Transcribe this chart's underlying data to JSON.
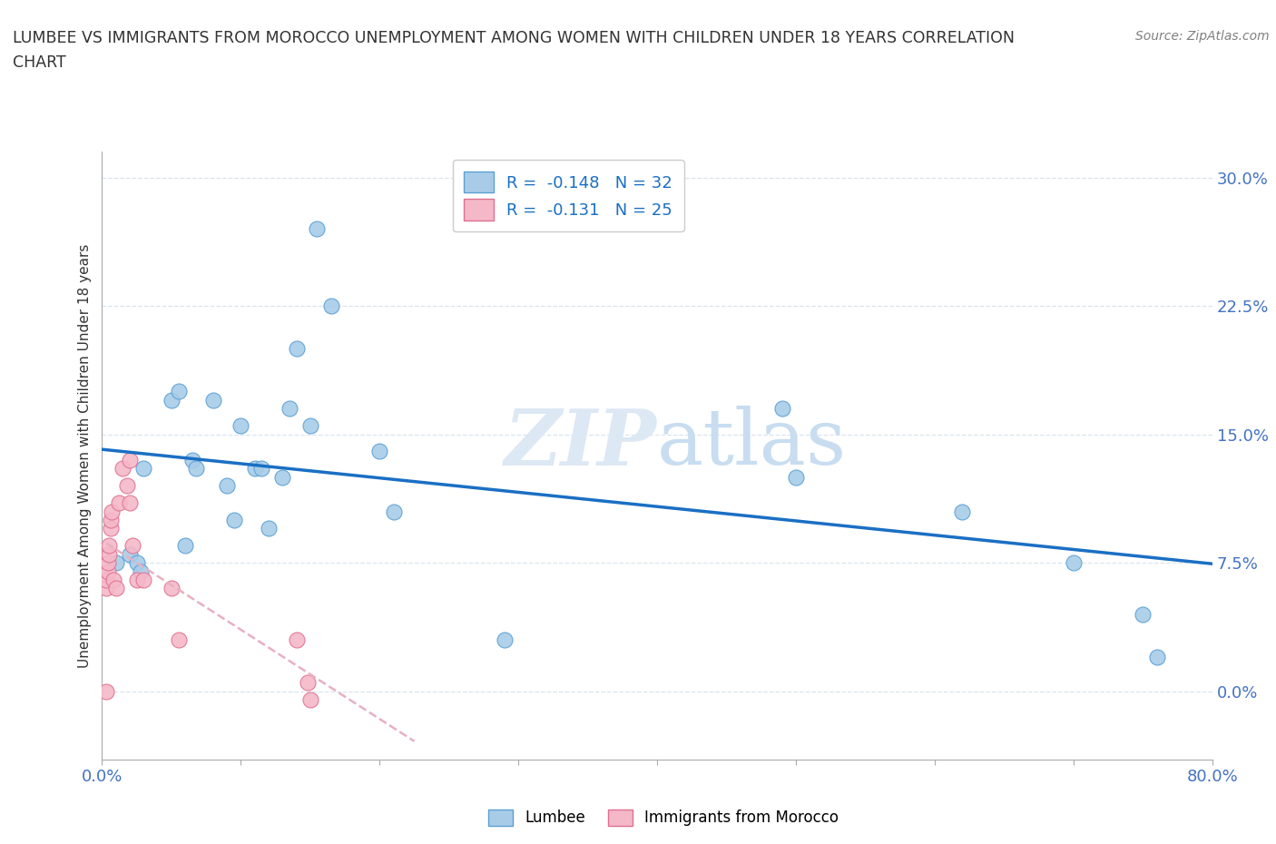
{
  "title_line1": "LUMBEE VS IMMIGRANTS FROM MOROCCO UNEMPLOYMENT AMONG WOMEN WITH CHILDREN UNDER 18 YEARS CORRELATION",
  "title_line2": "CHART",
  "source": "Source: ZipAtlas.com",
  "ylabel": "Unemployment Among Women with Children Under 18 years",
  "xlim": [
    0.0,
    0.8
  ],
  "ylim": [
    -0.04,
    0.315
  ],
  "yticks": [
    0.0,
    0.075,
    0.15,
    0.225,
    0.3
  ],
  "ytick_labels": [
    "0.0%",
    "7.5%",
    "15.0%",
    "22.5%",
    "30.0%"
  ],
  "xticks": [
    0.0,
    0.1,
    0.2,
    0.3,
    0.4,
    0.5,
    0.6,
    0.7,
    0.8
  ],
  "xtick_labels": [
    "0.0%",
    "",
    "",
    "",
    "",
    "",
    "",
    "",
    "80.0%"
  ],
  "lumbee_x": [
    0.01,
    0.02,
    0.025,
    0.028,
    0.03,
    0.05,
    0.055,
    0.06,
    0.065,
    0.068,
    0.08,
    0.09,
    0.095,
    0.1,
    0.11,
    0.115,
    0.12,
    0.13,
    0.135,
    0.14,
    0.15,
    0.155,
    0.165,
    0.2,
    0.21,
    0.29,
    0.49,
    0.5,
    0.62,
    0.7,
    0.75,
    0.76
  ],
  "lumbee_y": [
    0.075,
    0.08,
    0.075,
    0.07,
    0.13,
    0.17,
    0.175,
    0.085,
    0.135,
    0.13,
    0.17,
    0.12,
    0.1,
    0.155,
    0.13,
    0.13,
    0.095,
    0.125,
    0.165,
    0.2,
    0.155,
    0.27,
    0.225,
    0.14,
    0.105,
    0.03,
    0.165,
    0.125,
    0.105,
    0.075,
    0.045,
    0.02
  ],
  "morocco_x": [
    0.003,
    0.003,
    0.003,
    0.004,
    0.004,
    0.005,
    0.005,
    0.006,
    0.006,
    0.007,
    0.008,
    0.01,
    0.012,
    0.015,
    0.018,
    0.02,
    0.02,
    0.022,
    0.025,
    0.03,
    0.05,
    0.055,
    0.14,
    0.148,
    0.15
  ],
  "morocco_y": [
    0.0,
    0.06,
    0.065,
    0.07,
    0.075,
    0.08,
    0.085,
    0.095,
    0.1,
    0.105,
    0.065,
    0.06,
    0.11,
    0.13,
    0.12,
    0.135,
    0.11,
    0.085,
    0.065,
    0.065,
    0.06,
    0.03,
    0.03,
    0.005,
    -0.005
  ],
  "R_lumbee": -0.148,
  "N_lumbee": 32,
  "R_morocco": -0.131,
  "N_morocco": 25,
  "lumbee_dot_color": "#a8cce8",
  "lumbee_edge_color": "#5a9fd4",
  "morocco_dot_color": "#f4b8c8",
  "morocco_edge_color": "#e07090",
  "lumbee_line_color": "#1a6fc4",
  "morocco_line_color": "#e8b0c0",
  "legend_lumbee": "Lumbee",
  "legend_morocco": "Immigrants from Morocco",
  "title_color": "#333333",
  "axis_tick_color": "#4472c4",
  "grid_color": "#d8e4f0",
  "watermark_text": "ZIPatlas",
  "watermark_color": "#dce8f4",
  "source_color": "#808080"
}
